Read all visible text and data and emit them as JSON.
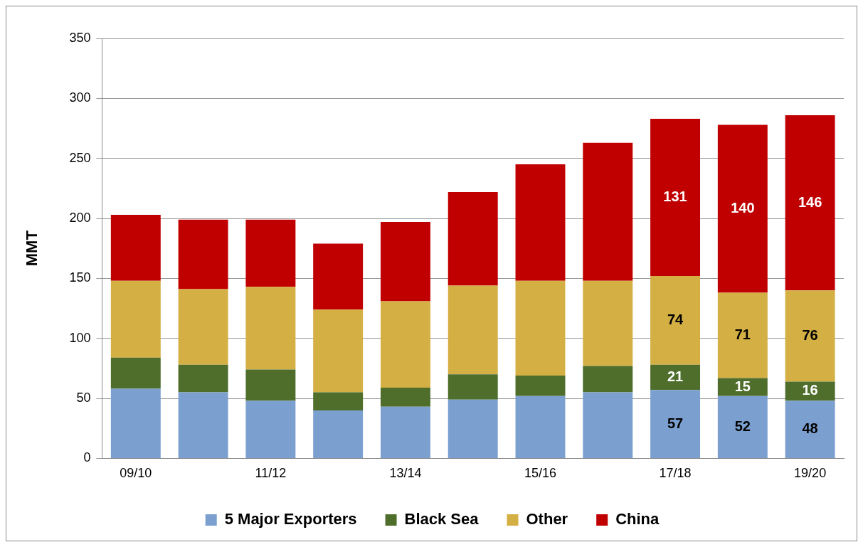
{
  "chart_data": {
    "type": "bar",
    "stacked": true,
    "ylabel": "MMT",
    "categories": [
      "09/10",
      null,
      "11/12",
      null,
      "13/14",
      null,
      "15/16",
      null,
      "17/18",
      null,
      "19/20"
    ],
    "series": [
      {
        "name": "5 Major Exporters",
        "color": "#7ba0d0",
        "values": [
          58,
          55,
          48,
          40,
          43,
          49,
          52,
          55,
          57,
          52,
          48
        ],
        "value_labels": [
          null,
          null,
          null,
          null,
          null,
          null,
          null,
          null,
          "57",
          "52",
          "48"
        ]
      },
      {
        "name": "Black Sea",
        "color": "#4f6e2c",
        "values": [
          26,
          23,
          26,
          15,
          16,
          21,
          17,
          22,
          21,
          15,
          16
        ],
        "value_labels": [
          null,
          null,
          null,
          null,
          null,
          null,
          null,
          null,
          "21",
          "15",
          "16"
        ]
      },
      {
        "name": "Other",
        "color": "#d4af43",
        "values": [
          64,
          63,
          69,
          69,
          72,
          74,
          79,
          71,
          74,
          71,
          76
        ],
        "value_labels": [
          null,
          null,
          null,
          null,
          null,
          null,
          null,
          null,
          "74",
          "71",
          "76"
        ]
      },
      {
        "name": "China",
        "color": "#c00000",
        "values": [
          55,
          58,
          56,
          55,
          66,
          78,
          97,
          115,
          131,
          140,
          146
        ],
        "value_labels": [
          null,
          null,
          null,
          null,
          null,
          null,
          null,
          null,
          "131",
          "140",
          "146"
        ]
      }
    ],
    "ylim": [
      0,
      350
    ],
    "yticks": [
      0,
      50,
      100,
      150,
      200,
      250,
      300,
      350
    ],
    "grid": "y",
    "legend": "bottom"
  }
}
